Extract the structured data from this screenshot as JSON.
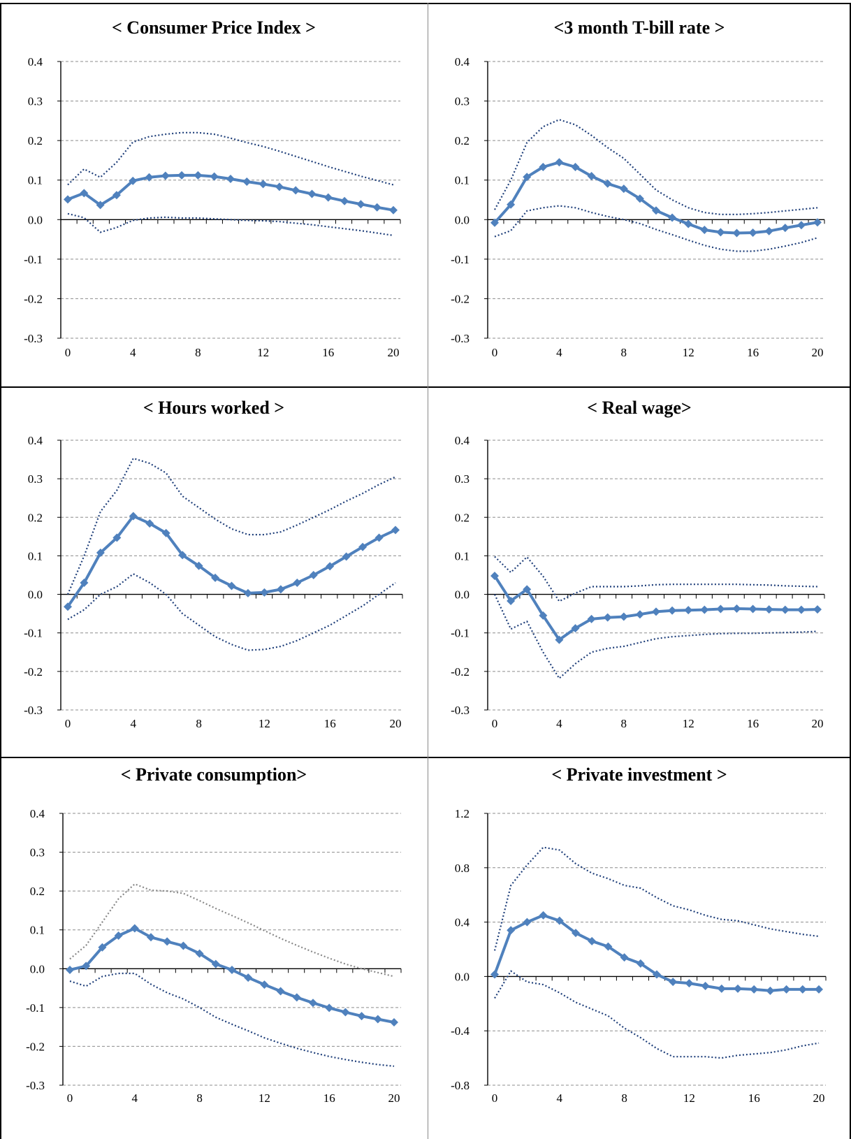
{
  "chart_data": [
    {
      "type": "line",
      "title": "< Consumer Price Index >",
      "x": [
        0,
        1,
        2,
        3,
        4,
        5,
        6,
        7,
        8,
        9,
        10,
        11,
        12,
        13,
        14,
        15,
        16,
        17,
        18,
        19,
        20
      ],
      "xticks": [
        0,
        4,
        8,
        12,
        16,
        20
      ],
      "ylim": [
        -0.3,
        0.4
      ],
      "yticks": [
        0.4,
        0.3,
        0.2,
        0.1,
        0.0,
        -0.1,
        -0.2,
        -0.3
      ],
      "ytick_labels": [
        "0.4",
        "0.3",
        "0.2",
        "0.1",
        "0.0",
        "-0.1",
        "-0.2",
        "-0.3"
      ],
      "grid": true,
      "series": [
        {
          "role": "estimate",
          "color": "#4f81bd",
          "values": [
            0.051,
            0.067,
            0.037,
            0.062,
            0.098,
            0.107,
            0.111,
            0.112,
            0.112,
            0.109,
            0.103,
            0.096,
            0.09,
            0.083,
            0.074,
            0.065,
            0.056,
            0.047,
            0.039,
            0.031,
            0.024
          ]
        },
        {
          "role": "upper",
          "color": "#1f3f7a",
          "values": [
            0.088,
            0.128,
            0.107,
            0.145,
            0.196,
            0.21,
            0.216,
            0.22,
            0.22,
            0.216,
            0.206,
            0.195,
            0.185,
            0.173,
            0.16,
            0.147,
            0.134,
            0.122,
            0.11,
            0.099,
            0.088
          ]
        },
        {
          "role": "lower",
          "color": "#1f3f7a",
          "values": [
            0.015,
            0.005,
            -0.032,
            -0.02,
            -0.002,
            0.004,
            0.006,
            0.004,
            0.004,
            0.002,
            0.0,
            -0.002,
            -0.003,
            -0.005,
            -0.009,
            -0.013,
            -0.018,
            -0.023,
            -0.028,
            -0.034,
            -0.04
          ]
        }
      ]
    },
    {
      "type": "line",
      "title": "<3 month T-bill rate >",
      "x": [
        0,
        1,
        2,
        3,
        4,
        5,
        6,
        7,
        8,
        9,
        10,
        11,
        12,
        13,
        14,
        15,
        16,
        17,
        18,
        19,
        20
      ],
      "xticks": [
        0,
        4,
        8,
        12,
        16,
        20
      ],
      "ylim": [
        -0.3,
        0.4
      ],
      "yticks": [
        0.4,
        0.3,
        0.2,
        0.1,
        0.0,
        -0.1,
        -0.2,
        -0.3
      ],
      "ytick_labels": [
        "0.4",
        "0.3",
        "0.2",
        "0.1",
        "0.0",
        "-0.1",
        "-0.2",
        "-0.3"
      ],
      "grid": true,
      "series": [
        {
          "role": "estimate",
          "color": "#4f81bd",
          "values": [
            -0.008,
            0.038,
            0.108,
            0.133,
            0.145,
            0.133,
            0.11,
            0.091,
            0.078,
            0.053,
            0.023,
            0.005,
            -0.011,
            -0.026,
            -0.032,
            -0.034,
            -0.033,
            -0.029,
            -0.021,
            -0.014,
            -0.007
          ]
        },
        {
          "role": "upper",
          "color": "#1f3f7a",
          "values": [
            0.025,
            0.1,
            0.195,
            0.235,
            0.253,
            0.24,
            0.213,
            0.182,
            0.155,
            0.115,
            0.075,
            0.05,
            0.03,
            0.018,
            0.013,
            0.013,
            0.015,
            0.018,
            0.022,
            0.026,
            0.03
          ]
        },
        {
          "role": "lower",
          "color": "#1f3f7a",
          "values": [
            -0.043,
            -0.028,
            0.022,
            0.03,
            0.035,
            0.03,
            0.018,
            0.008,
            0.0,
            -0.01,
            -0.025,
            -0.038,
            -0.052,
            -0.065,
            -0.075,
            -0.08,
            -0.08,
            -0.075,
            -0.067,
            -0.058,
            -0.046
          ]
        }
      ]
    },
    {
      "type": "line",
      "title": "< Hours worked >",
      "x": [
        0,
        1,
        2,
        3,
        4,
        5,
        6,
        7,
        8,
        9,
        10,
        11,
        12,
        13,
        14,
        15,
        16,
        17,
        18,
        19,
        20
      ],
      "xticks": [
        0,
        4,
        8,
        12,
        16,
        20
      ],
      "ylim": [
        -0.3,
        0.4
      ],
      "yticks": [
        0.4,
        0.3,
        0.2,
        0.1,
        0.0,
        -0.1,
        -0.2,
        -0.3
      ],
      "ytick_labels": [
        "0.4",
        "0.3",
        "0.2",
        "0.1",
        "0.0",
        "-0.1",
        "-0.2",
        "-0.3"
      ],
      "grid": true,
      "series": [
        {
          "role": "estimate",
          "color": "#4f81bd",
          "values": [
            -0.032,
            0.03,
            0.108,
            0.147,
            0.203,
            0.184,
            0.159,
            0.102,
            0.074,
            0.043,
            0.022,
            0.003,
            0.005,
            0.013,
            0.03,
            0.05,
            0.073,
            0.098,
            0.123,
            0.147,
            0.167
          ]
        },
        {
          "role": "upper",
          "color": "#1f3f7a",
          "values": [
            0.0,
            0.1,
            0.215,
            0.27,
            0.353,
            0.34,
            0.315,
            0.255,
            0.225,
            0.195,
            0.17,
            0.155,
            0.155,
            0.162,
            0.18,
            0.2,
            0.22,
            0.242,
            0.262,
            0.285,
            0.305
          ]
        },
        {
          "role": "lower",
          "color": "#1f3f7a",
          "values": [
            -0.065,
            -0.04,
            0.0,
            0.02,
            0.053,
            0.03,
            0.0,
            -0.05,
            -0.08,
            -0.11,
            -0.13,
            -0.145,
            -0.143,
            -0.135,
            -0.12,
            -0.1,
            -0.08,
            -0.055,
            -0.03,
            0.0,
            0.03
          ]
        }
      ]
    },
    {
      "type": "line",
      "title": "< Real wage>",
      "x": [
        0,
        1,
        2,
        3,
        4,
        5,
        6,
        7,
        8,
        9,
        10,
        11,
        12,
        13,
        14,
        15,
        16,
        17,
        18,
        19,
        20
      ],
      "xticks": [
        0,
        4,
        8,
        12,
        16,
        20
      ],
      "ylim": [
        -0.3,
        0.4
      ],
      "yticks": [
        0.4,
        0.3,
        0.2,
        0.1,
        0.0,
        -0.1,
        -0.2,
        -0.3
      ],
      "ytick_labels": [
        "0.4",
        "0.3",
        "0.2",
        "0.1",
        "0.0",
        "-0.1",
        "-0.2",
        "-0.3"
      ],
      "grid": true,
      "series": [
        {
          "role": "estimate",
          "color": "#4f81bd",
          "values": [
            0.048,
            -0.017,
            0.013,
            -0.055,
            -0.118,
            -0.088,
            -0.064,
            -0.06,
            -0.058,
            -0.052,
            -0.045,
            -0.042,
            -0.041,
            -0.04,
            -0.038,
            -0.037,
            -0.038,
            -0.039,
            -0.04,
            -0.04,
            -0.039
          ]
        },
        {
          "role": "upper",
          "color": "#1f3f7a",
          "values": [
            0.098,
            0.057,
            0.097,
            0.047,
            -0.018,
            0.003,
            0.02,
            0.02,
            0.02,
            0.022,
            0.025,
            0.026,
            0.026,
            0.026,
            0.026,
            0.026,
            0.025,
            0.024,
            0.022,
            0.021,
            0.02
          ]
        },
        {
          "role": "lower",
          "color": "#1f3f7a",
          "values": [
            0.0,
            -0.09,
            -0.07,
            -0.15,
            -0.218,
            -0.18,
            -0.15,
            -0.14,
            -0.135,
            -0.125,
            -0.115,
            -0.11,
            -0.107,
            -0.104,
            -0.102,
            -0.101,
            -0.101,
            -0.1,
            -0.099,
            -0.098,
            -0.096
          ]
        }
      ]
    },
    {
      "type": "line",
      "title": "< Private consumption>",
      "x": [
        0,
        1,
        2,
        3,
        4,
        5,
        6,
        7,
        8,
        9,
        10,
        11,
        12,
        13,
        14,
        15,
        16,
        17,
        18,
        19,
        20
      ],
      "xticks": [
        0,
        4,
        8,
        12,
        16,
        20
      ],
      "ylim": [
        -0.3,
        0.4
      ],
      "yticks": [
        0.4,
        0.3,
        0.2,
        0.1,
        0.0,
        -0.1,
        -0.2,
        -0.3
      ],
      "ytick_labels": [
        "0.4",
        "0.3",
        "0.2",
        "0.1",
        "0.0",
        "-0.1",
        "-0.2",
        "-0.3"
      ],
      "grid": true,
      "series": [
        {
          "role": "estimate",
          "color": "#4f81bd",
          "values": [
            -0.003,
            0.007,
            0.055,
            0.085,
            0.104,
            0.081,
            0.07,
            0.059,
            0.039,
            0.012,
            -0.003,
            -0.023,
            -0.041,
            -0.058,
            -0.074,
            -0.088,
            -0.101,
            -0.112,
            -0.122,
            -0.13,
            -0.138
          ]
        },
        {
          "role": "upper",
          "color": "#888888",
          "values": [
            0.025,
            0.06,
            0.12,
            0.18,
            0.218,
            0.202,
            0.2,
            0.194,
            0.175,
            0.155,
            0.137,
            0.118,
            0.098,
            0.078,
            0.06,
            0.043,
            0.027,
            0.012,
            0.0,
            -0.01,
            -0.02
          ]
        },
        {
          "role": "lower",
          "color": "#1f3f7a",
          "values": [
            -0.032,
            -0.045,
            -0.02,
            -0.012,
            -0.012,
            -0.04,
            -0.062,
            -0.078,
            -0.1,
            -0.125,
            -0.143,
            -0.16,
            -0.178,
            -0.192,
            -0.205,
            -0.216,
            -0.226,
            -0.234,
            -0.241,
            -0.247,
            -0.251
          ]
        }
      ]
    },
    {
      "type": "line",
      "title": "< Private investment >",
      "x": [
        0,
        1,
        2,
        3,
        4,
        5,
        6,
        7,
        8,
        9,
        10,
        11,
        12,
        13,
        14,
        15,
        16,
        17,
        18,
        19,
        20
      ],
      "xticks": [
        0,
        4,
        8,
        12,
        16,
        20
      ],
      "ylim": [
        -0.8,
        1.2
      ],
      "yticks": [
        1.2,
        0.8,
        0.4,
        0.0,
        -0.4,
        -0.8
      ],
      "ytick_labels": [
        "1.2",
        "0.8",
        "0.4",
        "0.0",
        "-0.4",
        "-0.8"
      ],
      "grid": true,
      "series": [
        {
          "role": "estimate",
          "color": "#4f81bd",
          "values": [
            0.015,
            0.34,
            0.4,
            0.45,
            0.41,
            0.32,
            0.26,
            0.22,
            0.14,
            0.095,
            0.015,
            -0.04,
            -0.05,
            -0.07,
            -0.09,
            -0.09,
            -0.095,
            -0.105,
            -0.095,
            -0.095,
            -0.095
          ]
        },
        {
          "role": "upper",
          "color": "#1f3f7a",
          "values": [
            0.19,
            0.67,
            0.82,
            0.95,
            0.93,
            0.83,
            0.76,
            0.72,
            0.67,
            0.65,
            0.58,
            0.52,
            0.49,
            0.45,
            0.42,
            0.41,
            0.38,
            0.35,
            0.33,
            0.31,
            0.295
          ]
        },
        {
          "role": "lower",
          "color": "#1f3f7a",
          "values": [
            -0.16,
            0.04,
            -0.04,
            -0.06,
            -0.12,
            -0.19,
            -0.24,
            -0.29,
            -0.38,
            -0.45,
            -0.53,
            -0.59,
            -0.59,
            -0.59,
            -0.6,
            -0.58,
            -0.57,
            -0.56,
            -0.54,
            -0.51,
            -0.49
          ]
        }
      ]
    }
  ]
}
